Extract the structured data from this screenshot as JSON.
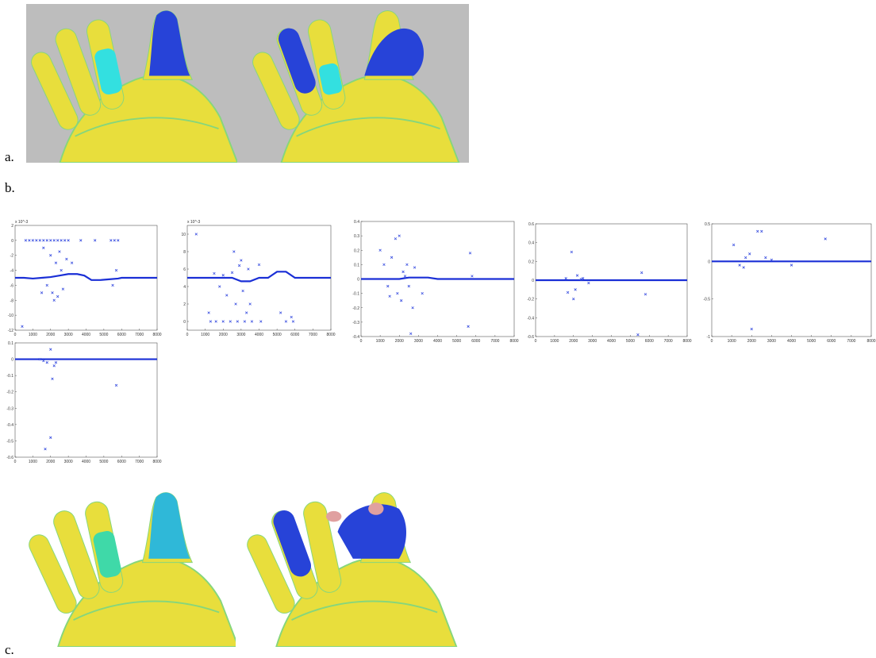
{
  "panels": {
    "a": "a.",
    "b": "b.",
    "c": "c."
  },
  "chart_data": [
    {
      "type": "scatter",
      "multiplier": "x 10^-3",
      "xlim": [
        0,
        8000
      ],
      "ylim": [
        -12,
        2
      ],
      "xticks": [
        0,
        1000,
        2000,
        3000,
        4000,
        5000,
        6000,
        7000,
        8000
      ],
      "yticks": [
        2,
        0,
        -2,
        -4,
        -6,
        -8,
        -10,
        -12
      ],
      "series": [
        {
          "type": "line",
          "color": "#1a2fd6",
          "x": [
            0,
            500,
            1000,
            1500,
            2000,
            2500,
            3000,
            3500,
            3900,
            4300,
            4800,
            5300,
            5800,
            6000,
            6500,
            7000,
            7500,
            8000
          ],
          "values": [
            -5,
            -5,
            -5.1,
            -5,
            -4.9,
            -4.7,
            -4.5,
            -4.5,
            -4.7,
            -5.3,
            -5.3,
            -5.2,
            -5.1,
            -5,
            -5,
            -5,
            -5,
            -5
          ]
        },
        {
          "type": "scatter",
          "color": "#3a4fe0",
          "x": [
            600,
            800,
            1000,
            1200,
            1400,
            1600,
            1800,
            2000,
            2200,
            2400,
            2600,
            2800,
            3000,
            3700,
            4500,
            5400,
            5600,
            5800,
            1600,
            2000,
            2300,
            2500,
            1800,
            2100,
            2400,
            2700,
            3200,
            2900,
            1500,
            5700,
            5500,
            400,
            2200,
            2600
          ],
          "values": [
            0,
            0,
            0,
            0,
            0,
            0,
            0,
            0,
            0,
            0,
            0,
            0,
            0,
            0,
            0,
            0,
            0,
            0,
            -1,
            -2,
            -3,
            -1.5,
            -6,
            -7,
            -7.5,
            -6.5,
            -3,
            -2.5,
            -7,
            -4,
            -6,
            -11.5,
            -8,
            -4
          ]
        }
      ]
    },
    {
      "type": "scatter",
      "multiplier": "x 10^-3",
      "xlim": [
        0,
        8000
      ],
      "ylim": [
        -1,
        11
      ],
      "xticks": [
        0,
        1000,
        2000,
        3000,
        4000,
        5000,
        6000,
        7000,
        8000
      ],
      "yticks": [
        10,
        8,
        6,
        4,
        2,
        0
      ],
      "series": [
        {
          "type": "line",
          "color": "#1a2fd6",
          "x": [
            0,
            500,
            1000,
            1500,
            2000,
            2500,
            3000,
            3500,
            4000,
            4500,
            5000,
            5500,
            6000,
            6500,
            7000,
            7500,
            8000
          ],
          "values": [
            5,
            5,
            5,
            5,
            5,
            5,
            4.6,
            4.6,
            5,
            5,
            5.7,
            5.7,
            5,
            5,
            5,
            5,
            5
          ]
        },
        {
          "type": "scatter",
          "color": "#3a4fe0",
          "x": [
            500,
            1300,
            1600,
            2000,
            2400,
            2800,
            3200,
            3600,
            4100,
            5500,
            5900,
            1500,
            2000,
            2500,
            3000,
            3400,
            2200,
            2700,
            3300,
            2600,
            1800,
            3100,
            5200,
            5800,
            4000,
            1200,
            2900,
            3500
          ],
          "values": [
            10,
            0,
            0,
            0,
            0,
            0,
            0,
            0,
            0,
            0,
            0,
            5.5,
            5.3,
            5.6,
            7,
            6,
            3,
            2,
            1,
            8,
            4,
            3.5,
            1,
            0.5,
            6.5,
            1,
            6.4,
            2
          ]
        }
      ]
    },
    {
      "type": "scatter",
      "xlim": [
        0,
        8000
      ],
      "ylim": [
        -0.4,
        0.4
      ],
      "xticks": [
        0,
        1000,
        2000,
        3000,
        4000,
        5000,
        6000,
        7000,
        8000
      ],
      "yticks": [
        0.4,
        0.3,
        0.2,
        0.1,
        0,
        -0.1,
        -0.2,
        -0.3,
        -0.4
      ],
      "series": [
        {
          "type": "line",
          "color": "#1a2fd6",
          "x": [
            0,
            500,
            1000,
            1500,
            2000,
            2500,
            3000,
            3500,
            4000,
            4500,
            5000,
            5500,
            6000,
            6500,
            7000,
            7500,
            8000
          ],
          "values": [
            0,
            0,
            0,
            0,
            0,
            0.01,
            0.01,
            0.01,
            0,
            0,
            0,
            0,
            0,
            0,
            0,
            0,
            0
          ]
        },
        {
          "type": "scatter",
          "color": "#3a4fe0",
          "x": [
            1000,
            1200,
            1400,
            1600,
            1900,
            2000,
            2100,
            2200,
            2400,
            2500,
            2600,
            2300,
            1800,
            2800,
            3200,
            5600,
            5700,
            5800,
            2700,
            1500
          ],
          "values": [
            0.2,
            0.1,
            -0.05,
            0.15,
            -0.1,
            0.3,
            -0.15,
            0.05,
            0.1,
            -0.05,
            -0.38,
            0.02,
            0.28,
            0.08,
            -0.1,
            -0.33,
            0.18,
            0.02,
            -0.2,
            -0.12
          ]
        }
      ]
    },
    {
      "type": "scatter",
      "xlim": [
        0,
        8000
      ],
      "ylim": [
        -0.6,
        0.6
      ],
      "xticks": [
        0,
        1000,
        2000,
        3000,
        4000,
        5000,
        6000,
        7000,
        8000
      ],
      "yticks": [
        0.6,
        0.4,
        0.2,
        0,
        -0.2,
        -0.4,
        -0.6
      ],
      "series": [
        {
          "type": "line",
          "color": "#1a2fd6",
          "x": [
            0,
            500,
            1000,
            1500,
            2000,
            2500,
            3000,
            3500,
            4000,
            4500,
            5000,
            5500,
            6000,
            6500,
            7000,
            7500,
            8000
          ],
          "values": [
            0,
            0,
            0,
            0,
            0,
            0,
            0,
            0,
            0,
            0,
            0,
            0,
            0,
            0,
            0,
            0,
            0
          ]
        },
        {
          "type": "scatter",
          "color": "#3a4fe0",
          "x": [
            1600,
            1900,
            2000,
            2100,
            2200,
            2500,
            2800,
            5600,
            5800,
            5400,
            1700,
            2400
          ],
          "values": [
            0.02,
            0.3,
            -0.2,
            -0.1,
            0.05,
            0.02,
            -0.03,
            0.08,
            -0.15,
            -0.58,
            -0.13,
            0.01
          ]
        }
      ]
    },
    {
      "type": "scatter",
      "xlim": [
        0,
        8000
      ],
      "ylim": [
        -1,
        0.5
      ],
      "xticks": [
        0,
        1000,
        2000,
        3000,
        4000,
        5000,
        6000,
        7000,
        8000
      ],
      "yticks": [
        0.5,
        0,
        -0.5,
        -1
      ],
      "series": [
        {
          "type": "line",
          "color": "#1a2fd6",
          "x": [
            0,
            500,
            1000,
            1500,
            2000,
            2500,
            3000,
            3500,
            4000,
            4500,
            5000,
            5500,
            6000,
            6500,
            7000,
            7500,
            8000
          ],
          "values": [
            0,
            0,
            0,
            0,
            0,
            0,
            0,
            0,
            0,
            0,
            0,
            0,
            0,
            0,
            0,
            0,
            0
          ]
        },
        {
          "type": "scatter",
          "color": "#3a4fe0",
          "x": [
            1100,
            1400,
            1700,
            1900,
            2000,
            2300,
            2500,
            2700,
            3000,
            4000,
            5700,
            1600
          ],
          "values": [
            0.22,
            -0.05,
            0.05,
            0.1,
            -0.9,
            0.4,
            0.4,
            0.05,
            0.02,
            -0.05,
            0.3,
            -0.08
          ]
        }
      ]
    },
    {
      "type": "scatter",
      "xlim": [
        0,
        8000
      ],
      "ylim": [
        -0.6,
        0.1
      ],
      "xticks": [
        0,
        1000,
        2000,
        3000,
        4000,
        5000,
        6000,
        7000,
        8000
      ],
      "yticks": [
        0.1,
        0,
        -0.1,
        -0.2,
        -0.3,
        -0.4,
        -0.5,
        -0.6
      ],
      "series": [
        {
          "type": "line",
          "color": "#1a2fd6",
          "x": [
            0,
            500,
            1000,
            1500,
            2000,
            2500,
            3000,
            3500,
            4000,
            4500,
            5000,
            5500,
            6000,
            6500,
            7000,
            7500,
            8000
          ],
          "values": [
            0,
            0,
            0,
            0,
            0,
            0,
            0,
            0,
            0,
            0,
            0,
            0,
            0,
            0,
            0,
            0,
            0
          ]
        },
        {
          "type": "scatter",
          "color": "#3a4fe0",
          "x": [
            1400,
            1600,
            1700,
            1800,
            2000,
            2100,
            2200,
            2000,
            5700,
            2300
          ],
          "values": [
            0,
            -0.01,
            -0.55,
            -0.02,
            -0.48,
            -0.12,
            -0.04,
            0.06,
            -0.16,
            -0.02
          ]
        }
      ]
    }
  ]
}
